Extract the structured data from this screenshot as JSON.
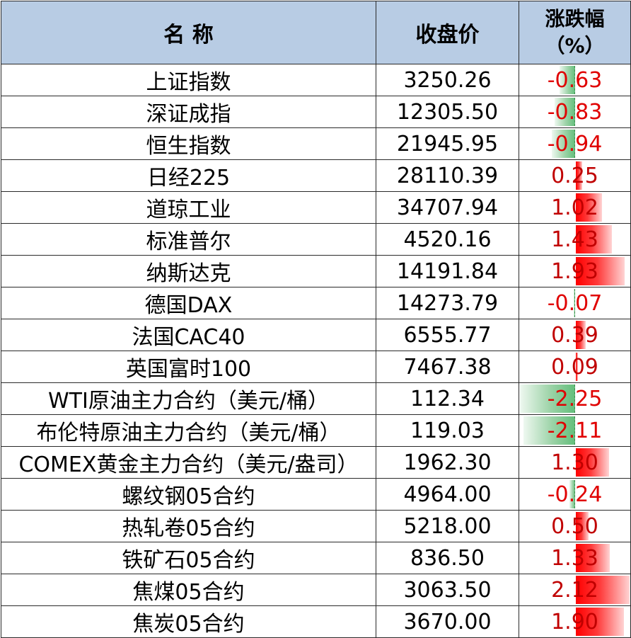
{
  "headers": {
    "name": "名 称",
    "close": "收盘价",
    "change_line1": "涨跌幅",
    "change_line2": "（%）"
  },
  "colors": {
    "header_bg": "#b8cce4",
    "positive_bar": "#ff0000",
    "negative_bar": "#63be7b",
    "negative_text": "#e00000",
    "positive_text": "#c00000"
  },
  "rows": [
    {
      "name": "上证指数",
      "close": "3250.26",
      "change": "-0.63",
      "change_value": -0.63
    },
    {
      "name": "深证成指",
      "close": "12305.50",
      "change": "-0.83",
      "change_value": -0.83
    },
    {
      "name": "恒生指数",
      "close": "21945.95",
      "change": "-0.94",
      "change_value": -0.94
    },
    {
      "name": "日经225",
      "close": "28110.39",
      "change": "0.25",
      "change_value": 0.25
    },
    {
      "name": "道琼工业",
      "close": "34707.94",
      "change": "1.02",
      "change_value": 1.02
    },
    {
      "name": "标准普尔",
      "close": "4520.16",
      "change": "1.43",
      "change_value": 1.43
    },
    {
      "name": "纳斯达克",
      "close": "14191.84",
      "change": "1.93",
      "change_value": 1.93
    },
    {
      "name": "德国DAX",
      "close": "14273.79",
      "change": "-0.07",
      "change_value": -0.07
    },
    {
      "name": "法国CAC40",
      "close": "6555.77",
      "change": "0.39",
      "change_value": 0.39
    },
    {
      "name": "英国富时100",
      "close": "7467.38",
      "change": "0.09",
      "change_value": 0.09
    },
    {
      "name": "WTI原油主力合约（美元/桶）",
      "close": "112.34",
      "change": "-2.25",
      "change_value": -2.25
    },
    {
      "name": "布伦特原油主力合约（美元/桶）",
      "close": "119.03",
      "change": "-2.11",
      "change_value": -2.11
    },
    {
      "name": "COMEX黄金主力合约（美元/盎司）",
      "close": "1962.30",
      "change": "1.30",
      "change_value": 1.3
    },
    {
      "name": "螺纹钢05合约",
      "close": "4964.00",
      "change": "-0.24",
      "change_value": -0.24
    },
    {
      "name": "热轧卷05合约",
      "close": "5218.00",
      "change": "0.50",
      "change_value": 0.5
    },
    {
      "name": "铁矿石05合约",
      "close": "836.50",
      "change": "1.33",
      "change_value": 1.33
    },
    {
      "name": "焦煤05合约",
      "close": "3063.50",
      "change": "2.12",
      "change_value": 2.12
    },
    {
      "name": "焦炭05合约",
      "close": "3670.00",
      "change": "1.90",
      "change_value": 1.9
    }
  ]
}
